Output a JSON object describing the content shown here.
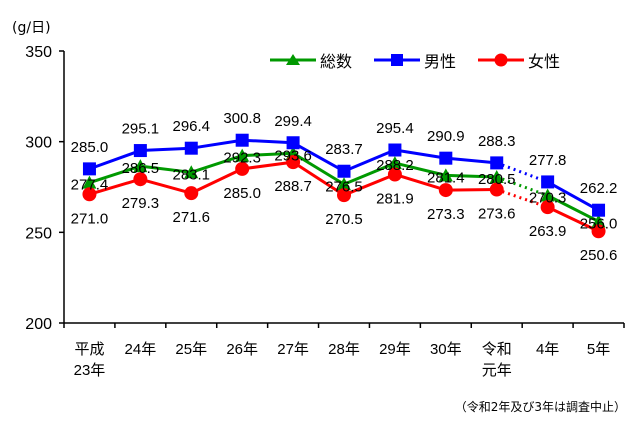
{
  "chart_data": {
    "type": "line",
    "title": "",
    "ylabel": "(g/日)",
    "xlabel": "",
    "ylim": [
      200,
      350
    ],
    "yticks": [
      200,
      250,
      300,
      350
    ],
    "categories": [
      "平成\n23年",
      "24年",
      "25年",
      "26年",
      "27年",
      "28年",
      "29年",
      "30年",
      "令和\n元年",
      "4年",
      "5年"
    ],
    "series": [
      {
        "name": "総数",
        "color": "#009900",
        "marker": "triangle",
        "values": [
          277.4,
          286.5,
          283.1,
          292.3,
          293.6,
          276.5,
          288.2,
          281.4,
          280.5,
          270.3,
          256.0
        ]
      },
      {
        "name": "男性",
        "color": "#0000ff",
        "marker": "square",
        "values": [
          285.0,
          295.1,
          296.4,
          300.8,
          299.4,
          283.7,
          295.4,
          290.9,
          288.3,
          277.8,
          262.2
        ]
      },
      {
        "name": "女性",
        "color": "#ff0000",
        "marker": "circle",
        "values": [
          271.0,
          279.3,
          271.6,
          285.0,
          288.7,
          270.5,
          281.9,
          273.3,
          273.6,
          263.9,
          250.6
        ]
      }
    ],
    "dotted_segment": {
      "from_index": 8,
      "to_index": 9
    },
    "legend_position": "top-right",
    "grid": false,
    "annotation": "（令和2年及び3年は調査中止）"
  },
  "unit_label": "(g/日)",
  "footnote": "（令和2年及び3年は調査中止）",
  "legend": [
    {
      "label": "総数",
      "color": "#009900",
      "marker": "triangle"
    },
    {
      "label": "男性",
      "color": "#0000ff",
      "marker": "square"
    },
    {
      "label": "女性",
      "color": "#ff0000",
      "marker": "circle"
    }
  ]
}
